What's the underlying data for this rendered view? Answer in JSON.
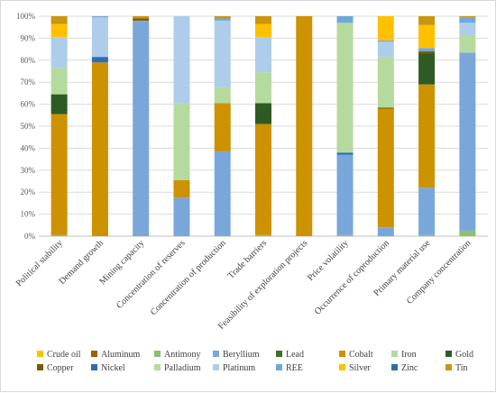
{
  "chart_data": {
    "type": "bar",
    "stacked": true,
    "percent": true,
    "ylim": [
      0,
      100
    ],
    "yticks": [
      "0%",
      "10%",
      "20%",
      "30%",
      "40%",
      "50%",
      "60%",
      "70%",
      "80%",
      "90%",
      "100%"
    ],
    "grid": true,
    "legend_position": "bottom",
    "categories": [
      "Political stability",
      "Demand growth",
      "Mining capacity",
      "Concentration of reserves",
      "Concentration of production",
      "Trade barriers",
      "Feasibility of exploration projects",
      "Price volatility",
      "Occurrence of coproduction",
      "Primary material use",
      "Company concentration"
    ],
    "series": [
      {
        "name": "Crude oil",
        "color": "#FFC000",
        "values": [
          0,
          0,
          0,
          0,
          0,
          0,
          0,
          0,
          0,
          0,
          0
        ]
      },
      {
        "name": "Aluminum",
        "color": "#9E5F0A",
        "values": [
          0,
          0,
          0,
          0,
          0,
          0,
          0,
          0,
          0,
          0,
          0
        ]
      },
      {
        "name": "Antimony",
        "color": "#8CC06A",
        "values": [
          0.5,
          0,
          0,
          0,
          0,
          0.5,
          0,
          0.5,
          0,
          0.5,
          2.5
        ]
      },
      {
        "name": "Beryllium",
        "color": "#7AA7DA",
        "values": [
          0,
          0,
          98,
          17.5,
          38.5,
          0,
          0,
          36.5,
          4,
          21.5,
          81
        ]
      },
      {
        "name": "Lead",
        "color": "#3A7223",
        "values": [
          0,
          0,
          0,
          0,
          0,
          0,
          0,
          0,
          0,
          0,
          0
        ]
      },
      {
        "name": "Cobalt",
        "color": "#CC9200",
        "values": [
          55,
          79,
          0,
          8,
          22,
          50.5,
          100,
          0,
          54,
          47,
          0
        ]
      },
      {
        "name": "Iron",
        "color": "#B6D9A3",
        "values": [
          0,
          0,
          0,
          0,
          0,
          0,
          0,
          0,
          0,
          0,
          0
        ]
      },
      {
        "name": "Gold",
        "color": "#2E5B24",
        "values": [
          9,
          0,
          0,
          0,
          0,
          9.5,
          0,
          0,
          0,
          14,
          0
        ]
      },
      {
        "name": "Copper",
        "color": "#7A5A00",
        "values": [
          0,
          0,
          1,
          0,
          0,
          0,
          0,
          0,
          0.5,
          1,
          0
        ]
      },
      {
        "name": "Nickel",
        "color": "#2E6DB4",
        "values": [
          0,
          2.5,
          0,
          0,
          0,
          0,
          0,
          1,
          0,
          0,
          0
        ]
      },
      {
        "name": "Palladium",
        "color": "#B5DA9E",
        "values": [
          12,
          0,
          0,
          35,
          7,
          14,
          0,
          59,
          23,
          0,
          7.5
        ]
      },
      {
        "name": "Platinum",
        "color": "#ADCDEB",
        "values": [
          14,
          18,
          0,
          39.5,
          30.5,
          16,
          0,
          0,
          7,
          0,
          6
        ]
      },
      {
        "name": "REE",
        "color": "#6FA8DC",
        "values": [
          0,
          0.5,
          0,
          0,
          1,
          0,
          0,
          3,
          0.5,
          1.5,
          2.5
        ]
      },
      {
        "name": "Silver",
        "color": "#FFC000",
        "values": [
          6,
          0,
          0,
          0,
          0,
          6,
          0,
          0,
          11,
          10.5,
          0
        ]
      },
      {
        "name": "Zinc",
        "color": "#2F6EA5",
        "values": [
          0,
          0,
          0,
          0,
          0,
          0,
          0,
          0,
          0,
          0,
          0
        ]
      },
      {
        "name": "Tin",
        "color": "#C9960C",
        "values": [
          3.5,
          0,
          1,
          0,
          1,
          3.5,
          0,
          0,
          0,
          4,
          0.5
        ]
      }
    ]
  }
}
